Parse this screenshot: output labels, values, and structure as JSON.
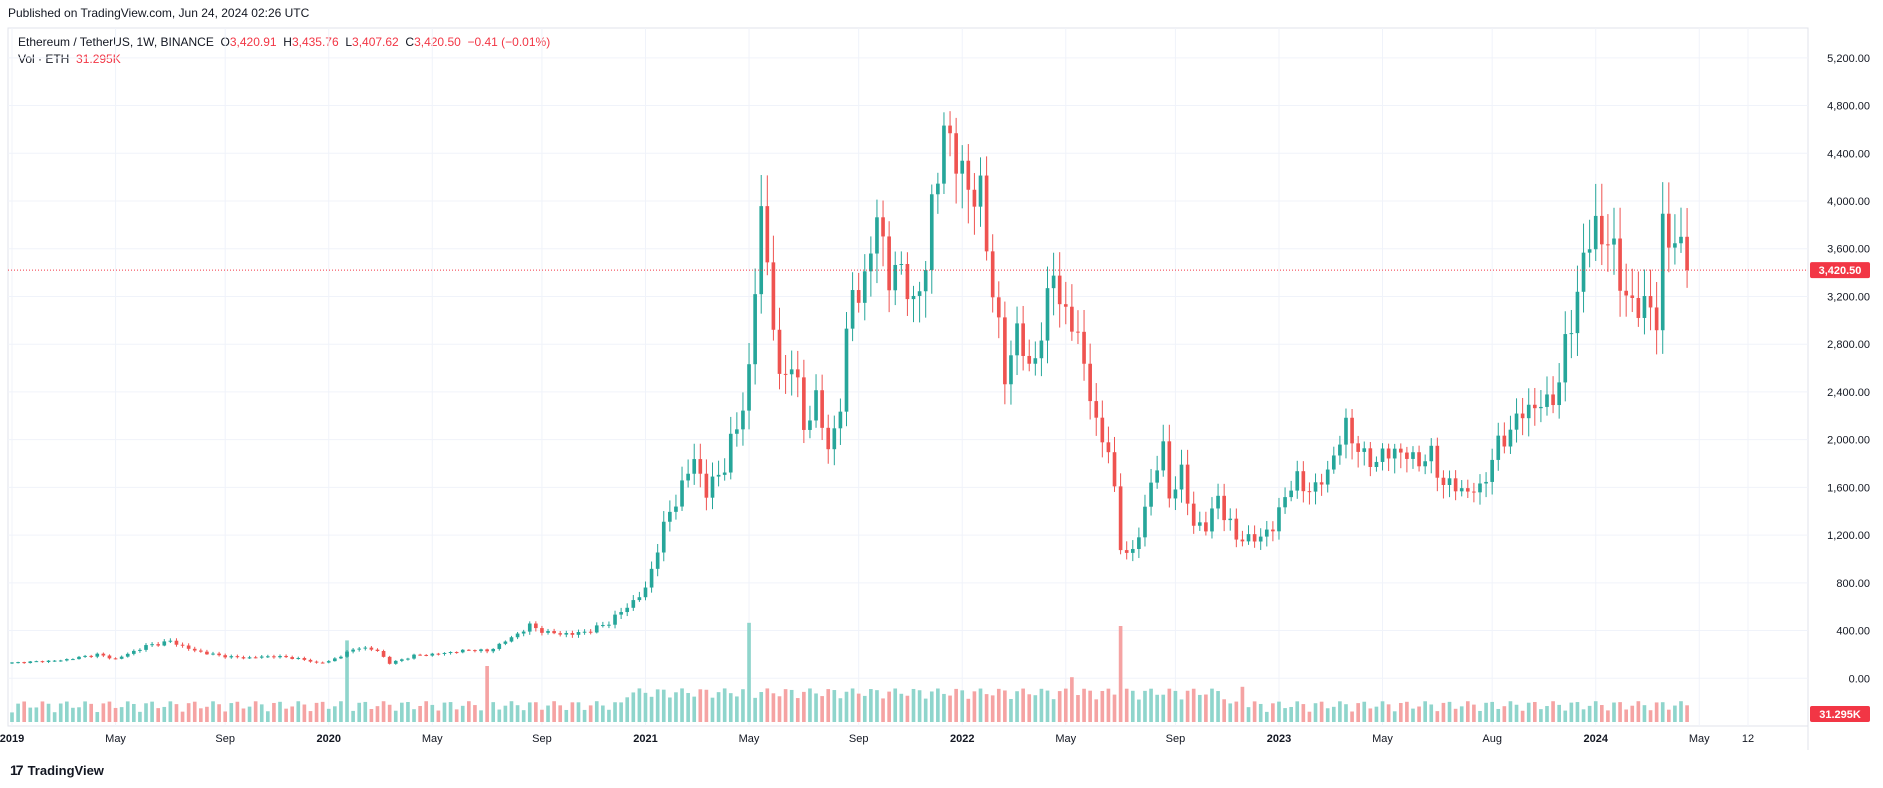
{
  "header": {
    "published": "Published on TradingView.com, Jun 24, 2024 02:26 UTC"
  },
  "legend": {
    "symbol": "Ethereum / TetherUS, 1W, BINANCE",
    "o_label": "O",
    "o_value": "3,420.91",
    "h_label": "H",
    "h_value": "3,435.76",
    "l_label": "L",
    "l_value": "3,407.62",
    "c_label": "C",
    "c_value": "3,420.50",
    "change": "−0.41 (−0.01%)",
    "vol_label": "Vol · ETH",
    "vol_value": "31.295K"
  },
  "price_tag": "3,420.50",
  "volume_tag": "31.295K",
  "footer": {
    "brand": "TradingView"
  },
  "colors": {
    "up": "#26a69a",
    "down": "#ef5350",
    "up_vol": "#8fd5cc",
    "down_vol": "#f5a3a3",
    "grid": "#f0f3fa",
    "price_line": "#f23645"
  },
  "chart_data": {
    "type": "candlestick",
    "title": "Ethereum / TetherUS, 1W, BINANCE",
    "y_axis": {
      "ticks": [
        0,
        400,
        800,
        1200,
        1600,
        2000,
        2400,
        2800,
        3200,
        3600,
        4000,
        4400,
        4800,
        5200
      ],
      "tick_labels": [
        "0.00",
        "400.00",
        "800.00",
        "1,200.00",
        "1,600.00",
        "2,000.00",
        "2,400.00",
        "2,800.00",
        "3,200.00",
        "3,600.00",
        "4,000.00",
        "4,400.00",
        "4,800.00",
        "5,200.00"
      ],
      "range": [
        -400,
        5450
      ]
    },
    "x_axis": {
      "labels": [
        "2019",
        "May",
        "Sep",
        "2020",
        "May",
        "Sep",
        "2021",
        "May",
        "Sep",
        "2022",
        "May",
        "Sep",
        "2023",
        "May",
        "Aug",
        "2024",
        "May",
        "12"
      ],
      "label_weeks": [
        0,
        17,
        35,
        52,
        69,
        87,
        104,
        121,
        139,
        156,
        173,
        191,
        208,
        225,
        243,
        260,
        277,
        285
      ],
      "bold": [
        "2019",
        "2020",
        "2021",
        "2022",
        "2023",
        "2024"
      ]
    },
    "last_price": 3420.5,
    "anchors": [
      [
        0,
        130
      ],
      [
        8,
        150
      ],
      [
        14,
        200
      ],
      [
        17,
        160
      ],
      [
        22,
        270
      ],
      [
        26,
        310
      ],
      [
        30,
        230
      ],
      [
        34,
        190
      ],
      [
        38,
        170
      ],
      [
        43,
        185
      ],
      [
        47,
        165
      ],
      [
        50,
        130
      ],
      [
        52,
        140
      ],
      [
        55,
        215
      ],
      [
        57,
        260
      ],
      [
        60,
        230
      ],
      [
        62,
        125
      ],
      [
        66,
        190
      ],
      [
        70,
        205
      ],
      [
        73,
        225
      ],
      [
        76,
        240
      ],
      [
        78,
        225
      ],
      [
        82,
        340
      ],
      [
        85,
        440
      ],
      [
        88,
        380
      ],
      [
        92,
        370
      ],
      [
        95,
        400
      ],
      [
        98,
        470
      ],
      [
        101,
        600
      ],
      [
        104,
        740
      ],
      [
        106,
        1100
      ],
      [
        108,
        1400
      ],
      [
        110,
        1600
      ],
      [
        112,
        1850
      ],
      [
        114,
        1550
      ],
      [
        117,
        1800
      ],
      [
        119,
        2100
      ],
      [
        121,
        2550
      ],
      [
        123,
        3950
      ],
      [
        125,
        3000
      ],
      [
        126,
        2450
      ],
      [
        128,
        2700
      ],
      [
        130,
        2100
      ],
      [
        132,
        2350
      ],
      [
        134,
        1900
      ],
      [
        136,
        2300
      ],
      [
        138,
        3300
      ],
      [
        140,
        3250
      ],
      [
        142,
        3950
      ],
      [
        144,
        3300
      ],
      [
        146,
        3500
      ],
      [
        148,
        3050
      ],
      [
        150,
        3550
      ],
      [
        152,
        4200
      ],
      [
        153,
        4700
      ],
      [
        155,
        4300
      ],
      [
        157,
        4150
      ],
      [
        159,
        4000
      ],
      [
        161,
        3300
      ],
      [
        163,
        2500
      ],
      [
        165,
        2950
      ],
      [
        167,
        2550
      ],
      [
        170,
        3100
      ],
      [
        171,
        3450
      ],
      [
        173,
        3000
      ],
      [
        175,
        2900
      ],
      [
        178,
        2100
      ],
      [
        180,
        1950
      ],
      [
        182,
        1100
      ],
      [
        184,
        1050
      ],
      [
        185,
        1200
      ],
      [
        187,
        1650
      ],
      [
        189,
        1900
      ],
      [
        190,
        1550
      ],
      [
        192,
        1700
      ],
      [
        194,
        1300
      ],
      [
        196,
        1250
      ],
      [
        198,
        1550
      ],
      [
        199,
        1350
      ],
      [
        201,
        1200
      ],
      [
        203,
        1150
      ],
      [
        205,
        1200
      ],
      [
        207,
        1250
      ],
      [
        209,
        1550
      ],
      [
        211,
        1650
      ],
      [
        214,
        1570
      ],
      [
        217,
        1850
      ],
      [
        219,
        2120
      ],
      [
        222,
        1830
      ],
      [
        225,
        1850
      ],
      [
        227,
        1920
      ],
      [
        230,
        1830
      ],
      [
        233,
        1850
      ],
      [
        235,
        1640
      ],
      [
        238,
        1580
      ],
      [
        241,
        1570
      ],
      [
        243,
        1850
      ],
      [
        246,
        2100
      ],
      [
        248,
        2220
      ],
      [
        250,
        2300
      ],
      [
        252,
        2280
      ],
      [
        254,
        2500
      ],
      [
        256,
        3000
      ],
      [
        258,
        3500
      ],
      [
        260,
        3800
      ],
      [
        262,
        3650
      ],
      [
        264,
        3400
      ],
      [
        266,
        3050
      ],
      [
        268,
        3200
      ],
      [
        270,
        2950
      ],
      [
        271,
        3800
      ],
      [
        273,
        3650
      ],
      [
        275,
        3420.5
      ]
    ],
    "volume_spikes": [
      [
        55,
        510
      ],
      [
        78,
        350
      ],
      [
        121,
        620
      ],
      [
        174,
        280
      ],
      [
        182,
        600
      ],
      [
        202,
        220
      ]
    ],
    "volume_axis_max_labelled": 400
  }
}
